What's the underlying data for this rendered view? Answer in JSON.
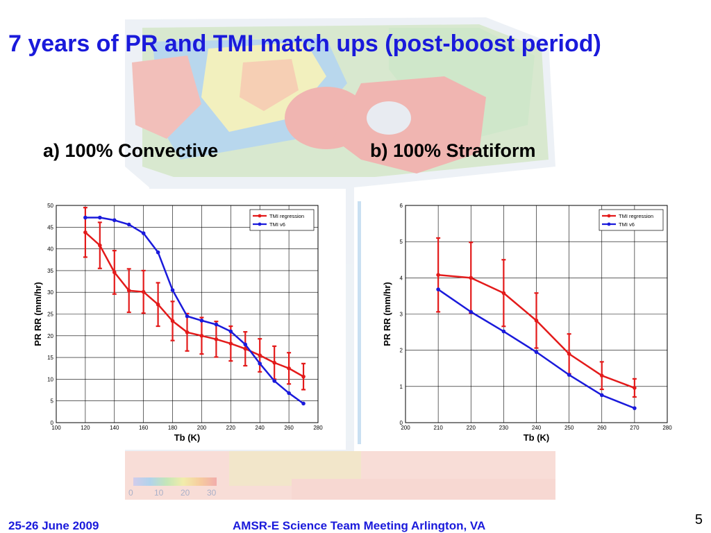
{
  "slide": {
    "title": "7 years of PR and TMI match ups (post-boost period)",
    "footer_date": "25-26 June 2009",
    "footer_event": "AMSR-E Science Team Meeting  Arlington, VA",
    "page_number": "5",
    "title_color": "#1a1adb",
    "background_map": {
      "colorbar_ticks": [
        "0",
        "10",
        "20",
        "30"
      ]
    }
  },
  "chart_data": [
    {
      "type": "line",
      "panel_label": "a) 100% Convective",
      "xlabel": "Tb (K)",
      "ylabel": "PR RR (mm/hr)",
      "xlim": [
        100,
        280
      ],
      "ylim": [
        0,
        50
      ],
      "xticks": [
        100,
        120,
        140,
        160,
        180,
        200,
        220,
        240,
        260,
        280
      ],
      "yticks": [
        0,
        5,
        10,
        15,
        20,
        25,
        30,
        35,
        40,
        45,
        50
      ],
      "grid": true,
      "legend_position": "top-right",
      "series": [
        {
          "name": "TMI regression",
          "color": "#e31a1a",
          "x": [
            120,
            130,
            140,
            150,
            160,
            170,
            180,
            190,
            200,
            210,
            220,
            230,
            240,
            250,
            260,
            270
          ],
          "y": [
            43.8,
            40.8,
            34.6,
            30.4,
            30.1,
            27.2,
            23.4,
            20.8,
            20.0,
            19.2,
            18.2,
            17.0,
            15.5,
            13.8,
            12.5,
            10.6
          ],
          "error": [
            5.7,
            5.3,
            5.0,
            5.0,
            4.9,
            5.0,
            4.5,
            4.3,
            4.2,
            4.1,
            4.0,
            3.9,
            3.8,
            3.8,
            3.6,
            3.0
          ]
        },
        {
          "name": "TMI v6",
          "color": "#1a1adb",
          "x": [
            120,
            130,
            140,
            150,
            160,
            170,
            180,
            190,
            200,
            210,
            220,
            230,
            240,
            250,
            260,
            270
          ],
          "y": [
            47.2,
            47.2,
            46.6,
            45.6,
            43.6,
            39.2,
            30.5,
            24.5,
            23.5,
            22.6,
            21.0,
            18.0,
            13.6,
            9.6,
            6.8,
            4.4
          ]
        }
      ]
    },
    {
      "type": "line",
      "panel_label": "b) 100% Stratiform",
      "xlabel": "Tb (K)",
      "ylabel": "PR RR (mm/hr)",
      "xlim": [
        200,
        280
      ],
      "ylim": [
        0,
        6
      ],
      "xticks": [
        200,
        210,
        220,
        230,
        240,
        250,
        260,
        270,
        280
      ],
      "yticks": [
        0,
        1,
        2,
        3,
        4,
        5,
        6
      ],
      "grid": true,
      "legend_position": "top-right",
      "series": [
        {
          "name": "TMI regression",
          "color": "#e31a1a",
          "x": [
            210,
            220,
            230,
            240,
            250,
            260,
            270
          ],
          "y": [
            4.08,
            4.0,
            3.58,
            2.82,
            1.9,
            1.3,
            0.96
          ],
          "error": [
            1.02,
            0.98,
            0.92,
            0.76,
            0.55,
            0.38,
            0.25
          ]
        },
        {
          "name": "TMI v6",
          "color": "#1a1adb",
          "x": [
            210,
            220,
            230,
            240,
            250,
            260,
            270
          ],
          "y": [
            3.68,
            3.06,
            2.52,
            1.95,
            1.32,
            0.76,
            0.4
          ]
        }
      ]
    }
  ]
}
